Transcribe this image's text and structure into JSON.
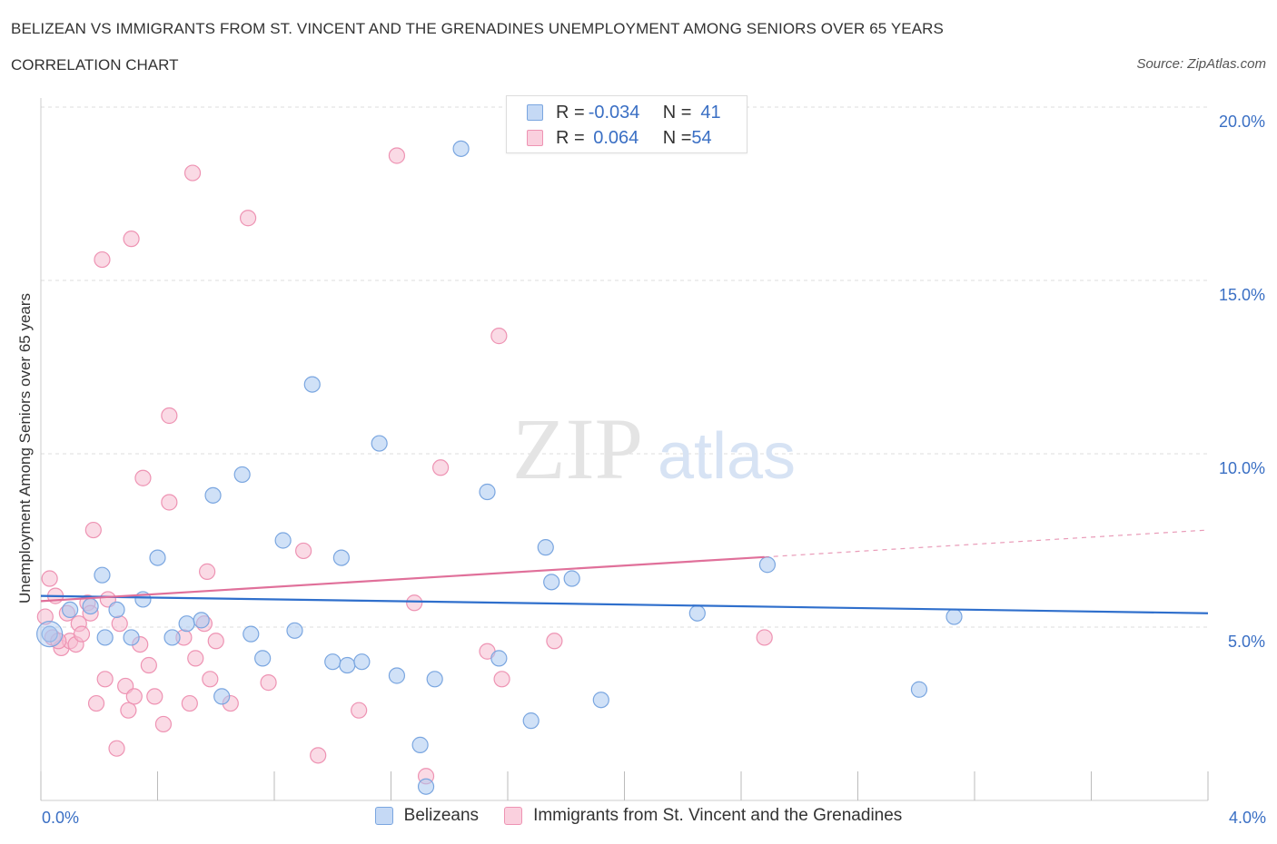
{
  "header": {
    "title": "BELIZEAN VS IMMIGRANTS FROM ST. VINCENT AND THE GRENADINES UNEMPLOYMENT AMONG SENIORS OVER 65 YEARS",
    "subtitle": "CORRELATION CHART",
    "source": "Source: ZipAtlas.com"
  },
  "legend": {
    "rows": [
      {
        "r_label": "R = ",
        "r_value": "-0.034",
        "n_label": "N = ",
        "n_value": "41"
      },
      {
        "r_label": "R = ",
        "r_value": " 0.064",
        "n_label": "N = ",
        "n_value": "54"
      }
    ]
  },
  "bottom_legend": {
    "series1": "Belizeans",
    "series2": "Immigrants from St. Vincent and the Grenadines"
  },
  "watermark": {
    "zip": "ZIP",
    "atlas": "atlas"
  },
  "colors": {
    "blue_fill": "#aac8f0",
    "blue_stroke": "#7aa6e0",
    "blue_line": "#2f6fcc",
    "pink_fill": "#f6bcd0",
    "pink_stroke": "#ee93b3",
    "pink_line": "#e0709a",
    "axis_text": "#3a6fc4"
  },
  "chart_data": {
    "type": "scatter",
    "xlabel": "",
    "ylabel": "Unemployment Among Seniors over 65 years",
    "xlim": [
      0,
      4.0
    ],
    "ylim": [
      0,
      20
    ],
    "x_tick_labels": [
      "0.0%",
      "4.0%"
    ],
    "y_ticks": [
      5,
      10,
      15,
      20
    ],
    "y_tick_labels": [
      "5.0%",
      "10.0%",
      "15.0%",
      "20.0%"
    ],
    "grid": true,
    "series": [
      {
        "name": "Belizeans",
        "color": "#aac8f0",
        "points": [
          [
            0.03,
            4.8
          ],
          [
            0.17,
            5.6
          ],
          [
            0.22,
            4.7
          ],
          [
            0.21,
            6.5
          ],
          [
            0.26,
            5.5
          ],
          [
            0.31,
            4.7
          ],
          [
            0.35,
            5.8
          ],
          [
            0.4,
            7.0
          ],
          [
            0.45,
            4.7
          ],
          [
            0.5,
            5.1
          ],
          [
            0.55,
            5.2
          ],
          [
            0.59,
            8.8
          ],
          [
            0.62,
            3.0
          ],
          [
            0.69,
            9.4
          ],
          [
            0.72,
            4.8
          ],
          [
            0.76,
            4.1
          ],
          [
            0.83,
            7.5
          ],
          [
            0.87,
            4.9
          ],
          [
            0.93,
            12.0
          ],
          [
            1.0,
            4.0
          ],
          [
            1.05,
            3.9
          ],
          [
            1.03,
            7.0
          ],
          [
            1.1,
            4.0
          ],
          [
            1.16,
            10.3
          ],
          [
            1.22,
            3.6
          ],
          [
            1.3,
            1.6
          ],
          [
            1.32,
            0.4
          ],
          [
            1.35,
            3.5
          ],
          [
            1.44,
            18.8
          ],
          [
            1.53,
            8.9
          ],
          [
            1.57,
            4.1
          ],
          [
            1.68,
            2.3
          ],
          [
            1.73,
            7.3
          ],
          [
            1.75,
            6.3
          ],
          [
            1.82,
            6.4
          ],
          [
            1.92,
            2.9
          ],
          [
            2.25,
            5.4
          ],
          [
            2.49,
            6.8
          ],
          [
            3.13,
            5.3
          ],
          [
            3.01,
            3.2
          ],
          [
            0.1,
            5.5
          ]
        ]
      },
      {
        "name": "Immigrants from St. Vincent and the Grenadines",
        "color": "#f6bcd0",
        "points": [
          [
            0.03,
            6.4
          ],
          [
            0.05,
            5.9
          ],
          [
            0.04,
            4.7
          ],
          [
            0.07,
            4.4
          ],
          [
            0.09,
            5.4
          ],
          [
            0.1,
            4.6
          ],
          [
            0.12,
            4.5
          ],
          [
            0.13,
            5.1
          ],
          [
            0.14,
            4.8
          ],
          [
            0.16,
            5.7
          ],
          [
            0.17,
            5.4
          ],
          [
            0.18,
            7.8
          ],
          [
            0.19,
            2.8
          ],
          [
            0.21,
            15.6
          ],
          [
            0.22,
            3.5
          ],
          [
            0.23,
            5.8
          ],
          [
            0.26,
            1.5
          ],
          [
            0.27,
            5.1
          ],
          [
            0.29,
            3.3
          ],
          [
            0.3,
            2.6
          ],
          [
            0.31,
            16.2
          ],
          [
            0.32,
            3.0
          ],
          [
            0.34,
            4.5
          ],
          [
            0.35,
            9.3
          ],
          [
            0.37,
            3.9
          ],
          [
            0.39,
            3.0
          ],
          [
            0.42,
            2.2
          ],
          [
            0.44,
            11.1
          ],
          [
            0.44,
            8.6
          ],
          [
            0.49,
            4.7
          ],
          [
            0.51,
            2.8
          ],
          [
            0.52,
            18.1
          ],
          [
            0.53,
            4.1
          ],
          [
            0.56,
            5.1
          ],
          [
            0.57,
            6.6
          ],
          [
            0.58,
            3.5
          ],
          [
            0.6,
            4.6
          ],
          [
            0.65,
            2.8
          ],
          [
            0.71,
            16.8
          ],
          [
            0.78,
            3.4
          ],
          [
            0.9,
            7.2
          ],
          [
            0.95,
            1.3
          ],
          [
            1.09,
            2.6
          ],
          [
            1.22,
            18.6
          ],
          [
            1.28,
            5.7
          ],
          [
            1.32,
            0.7
          ],
          [
            1.37,
            9.6
          ],
          [
            1.53,
            4.3
          ],
          [
            1.57,
            13.4
          ],
          [
            1.58,
            3.5
          ],
          [
            1.76,
            4.6
          ],
          [
            2.48,
            4.7
          ],
          [
            0.015,
            5.3
          ],
          [
            0.06,
            4.6
          ]
        ]
      }
    ],
    "trendlines": [
      {
        "series": "Belizeans",
        "x": [
          0.0,
          4.0
        ],
        "y": [
          5.9,
          5.4
        ],
        "dashed_from": null
      },
      {
        "series": "Immigrants from St. Vincent and the Grenadines",
        "x": [
          0.0,
          4.0
        ],
        "y": [
          5.75,
          7.8
        ],
        "dashed_from": 2.48
      }
    ]
  }
}
